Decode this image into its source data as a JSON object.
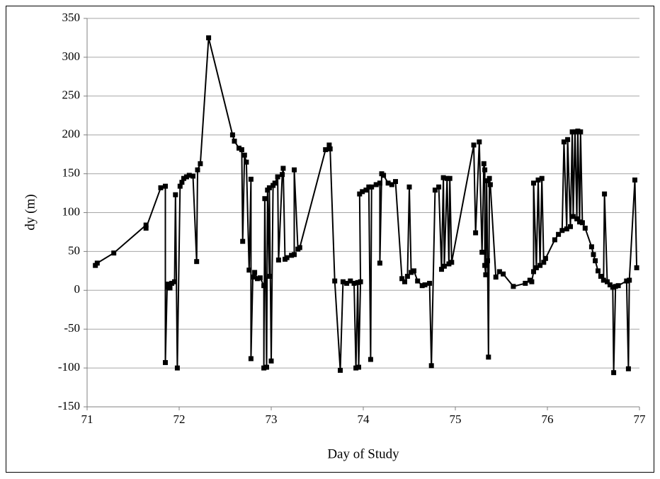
{
  "chart_data": {
    "type": "line",
    "x_label": "Day of Study",
    "y_label": "dy (m)",
    "color": "#000000",
    "marker": "square",
    "grid": true,
    "x": [
      71.09,
      71.11,
      71.29,
      71.64,
      71.64,
      71.8,
      71.85,
      71.85,
      71.87,
      71.88,
      71.9,
      71.92,
      71.95,
      71.96,
      71.98,
      72.01,
      72.03,
      72.05,
      72.08,
      72.11,
      72.15,
      72.19,
      72.2,
      72.23,
      72.32,
      72.58,
      72.6,
      72.65,
      72.68,
      72.69,
      72.71,
      72.73,
      72.76,
      72.78,
      72.78,
      72.8,
      72.82,
      72.85,
      72.88,
      72.92,
      72.92,
      72.93,
      72.95,
      72.96,
      72.98,
      72.98,
      73.0,
      73.02,
      73.04,
      73.07,
      73.08,
      73.12,
      73.13,
      73.15,
      73.17,
      73.22,
      73.25,
      73.25,
      73.29,
      73.31,
      73.59,
      73.63,
      73.64,
      73.69,
      73.75,
      73.78,
      73.82,
      73.86,
      73.9,
      73.92,
      73.94,
      73.95,
      73.97,
      73.96,
      73.99,
      74.03,
      74.06,
      74.08,
      74.09,
      74.14,
      74.18,
      74.18,
      74.2,
      74.22,
      74.27,
      74.31,
      74.35,
      74.42,
      74.45,
      74.48,
      74.5,
      74.52,
      74.55,
      74.59,
      74.64,
      74.67,
      74.72,
      74.74,
      74.78,
      74.82,
      74.85,
      74.87,
      74.88,
      74.91,
      74.93,
      74.94,
      74.96,
      75.2,
      75.22,
      75.26,
      75.29,
      75.31,
      75.32,
      75.32,
      75.33,
      75.34,
      75.35,
      75.36,
      75.37,
      75.38,
      75.44,
      75.48,
      75.52,
      75.63,
      75.76,
      75.81,
      75.83,
      75.85,
      75.85,
      75.88,
      75.9,
      75.92,
      75.94,
      75.96,
      75.98,
      76.08,
      76.12,
      76.16,
      76.18,
      76.21,
      76.22,
      76.25,
      76.27,
      76.28,
      76.3,
      76.32,
      76.33,
      76.35,
      76.36,
      76.38,
      76.41,
      76.48,
      76.5,
      76.52,
      76.55,
      76.58,
      76.61,
      76.62,
      76.65,
      76.68,
      76.71,
      76.72,
      76.74,
      76.77,
      76.86,
      76.88,
      76.89,
      76.95,
      76.97
    ],
    "values": [
      32,
      35,
      48,
      84,
      80,
      132,
      134,
      -93,
      8,
      4,
      3,
      9,
      11,
      123,
      -100,
      134,
      139,
      144,
      146,
      148,
      147,
      37,
      155,
      163,
      325,
      200,
      192,
      183,
      181,
      63,
      174,
      165,
      26,
      143,
      -88,
      17,
      23,
      15,
      16,
      6,
      -100,
      118,
      -99,
      129,
      18,
      132,
      -91,
      135,
      138,
      146,
      39,
      149,
      157,
      40,
      42,
      45,
      46,
      155,
      53,
      55,
      181,
      187,
      182,
      12,
      -103,
      11,
      9,
      12,
      9,
      -100,
      10,
      -99,
      11,
      124,
      127,
      129,
      133,
      -89,
      133,
      136,
      138,
      35,
      150,
      148,
      138,
      136,
      140,
      15,
      11,
      18,
      133,
      23,
      25,
      12,
      6,
      7,
      9,
      -97,
      129,
      133,
      27,
      145,
      31,
      144,
      34,
      144,
      36,
      187,
      74,
      191,
      49,
      163,
      155,
      32,
      20,
      141,
      38,
      -86,
      144,
      136,
      17,
      24,
      21,
      5,
      9,
      13,
      11,
      24,
      138,
      29,
      142,
      32,
      144,
      36,
      41,
      65,
      72,
      77,
      191,
      79,
      194,
      82,
      204,
      95,
      204,
      92,
      205,
      88,
      204,
      87,
      80,
      56,
      46,
      38,
      25,
      18,
      13,
      124,
      11,
      7,
      4,
      -106,
      5,
      6,
      12,
      -101,
      13,
      142,
      29
    ],
    "xlim": [
      71,
      77
    ],
    "xticks": [
      71,
      72,
      73,
      74,
      75,
      76,
      77
    ],
    "ylim": [
      -150,
      350
    ],
    "yticks": [
      -150,
      -100,
      -50,
      0,
      50,
      100,
      150,
      200,
      250,
      300,
      350
    ]
  }
}
